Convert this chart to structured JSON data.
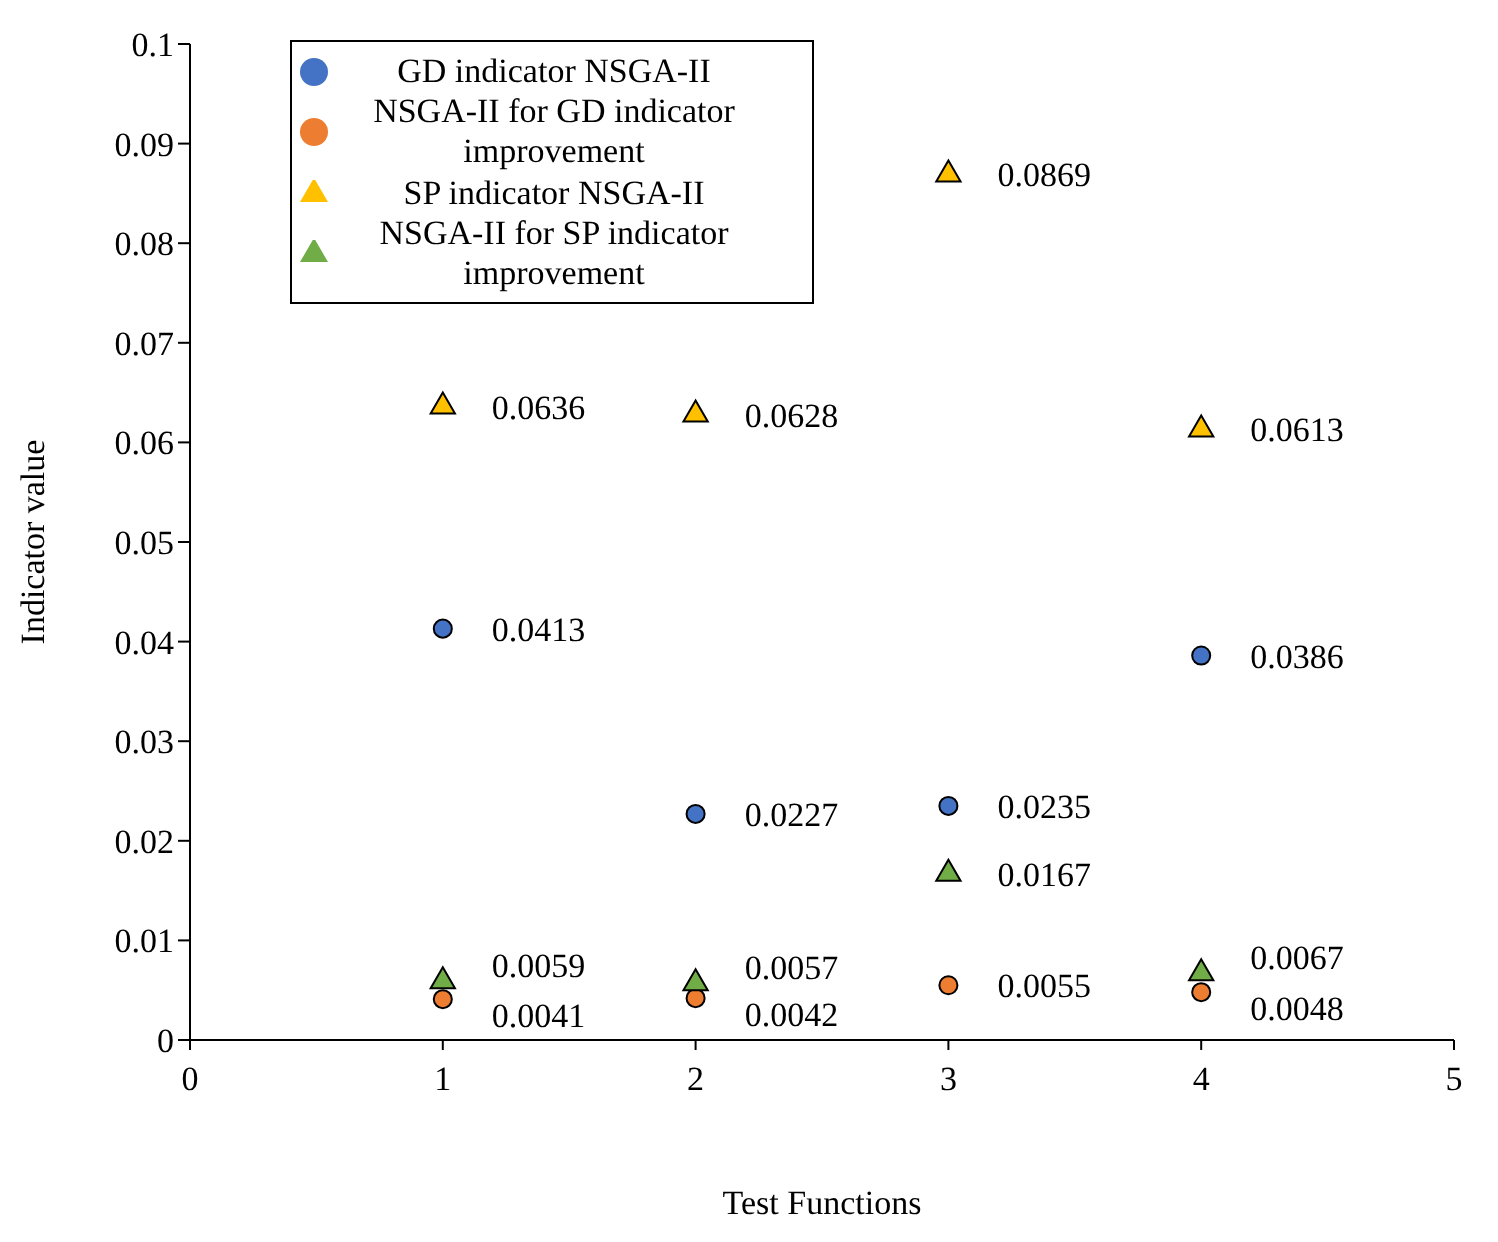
{
  "chart_data": {
    "type": "scatter",
    "xlabel": "Test Functions",
    "ylabel": "Indicator value",
    "x": [
      1,
      2,
      3,
      4
    ],
    "series": [
      {
        "name": "GD indicator NSGA-II",
        "color": "#4472c4",
        "marker": "circle",
        "values": [
          0.0413,
          0.0227,
          0.0235,
          0.0386
        ]
      },
      {
        "name": "NSGA-II for GD indicator improvement",
        "color": "#ed7d31",
        "marker": "circle",
        "values": [
          0.0041,
          0.0042,
          0.0055,
          0.0048
        ]
      },
      {
        "name": "SP indicator NSGA-II",
        "color": "#ffc000",
        "marker": "triangle",
        "values": [
          0.0636,
          0.0628,
          0.0869,
          0.0613
        ]
      },
      {
        "name": "NSGA-II for SP indicator improvement",
        "color": "#70ad47",
        "marker": "triangle",
        "values": [
          0.0059,
          0.0057,
          0.0167,
          0.0067
        ]
      }
    ],
    "xlim": [
      0,
      5
    ],
    "xticks": [
      0,
      1,
      2,
      3,
      4,
      5
    ],
    "ylim": [
      0,
      0.1
    ],
    "yticks": [
      0,
      0.01,
      0.02,
      0.03,
      0.04,
      0.05,
      0.06,
      0.07,
      0.08,
      0.09,
      0.1
    ],
    "data_labels": true,
    "grid": false,
    "legend": "top left"
  }
}
